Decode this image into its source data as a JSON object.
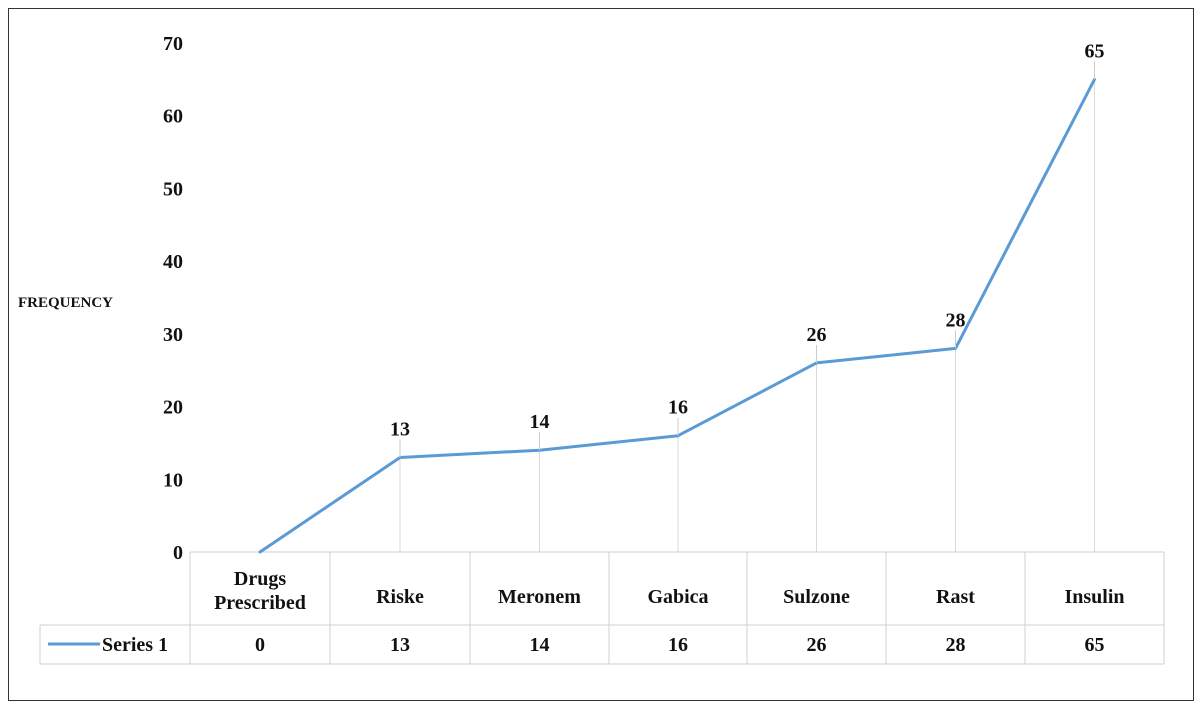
{
  "chart_data": {
    "type": "line",
    "title": "",
    "ylabel": "FREQUENCY",
    "xlabel": "",
    "ylim": [
      0,
      70
    ],
    "yticks": [
      0,
      10,
      20,
      30,
      40,
      50,
      60,
      70
    ],
    "grid": false,
    "legend": "table-left",
    "categories": [
      "Drugs Prescribed",
      "Riske",
      "Meronem",
      "Gabica",
      "Sulzone",
      "Rast",
      "Insulin"
    ],
    "series": [
      {
        "name": "Series 1",
        "values": [
          0,
          13,
          14,
          16,
          26,
          28,
          65
        ],
        "color": "#5b9bd5"
      }
    ],
    "data_labels": [
      "13",
      "14",
      "16",
      "26",
      "28",
      "65"
    ]
  }
}
